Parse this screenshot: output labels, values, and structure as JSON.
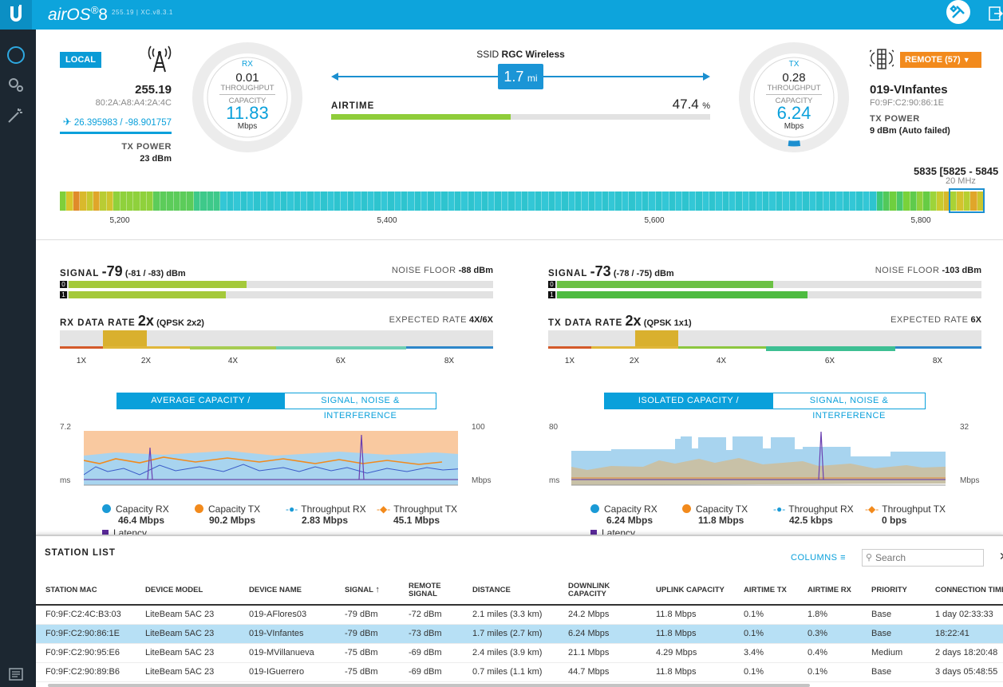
{
  "app": {
    "logo": "airOS",
    "version_num": "8",
    "subtitle": "255.19 | XC.v8.3.1"
  },
  "local": {
    "badge": "LOCAL",
    "ip": "255.19",
    "mac": "80:2A:A8:A4:2A:4C",
    "coords": "26.395983 / -98.901757",
    "tx_power_label": "TX POWER",
    "tx_power": "23 dBm"
  },
  "rx_gauge": {
    "label": "RX",
    "throughput": "0.01",
    "throughput_label": "THROUGHPUT",
    "capacity_label": "CAPACITY",
    "capacity": "11.83",
    "unit": "Mbps"
  },
  "tx_gauge": {
    "label": "TX",
    "throughput": "0.28",
    "throughput_label": "THROUGHPUT",
    "capacity_label": "CAPACITY",
    "capacity": "6.24",
    "unit": "Mbps",
    "level": 0.08
  },
  "link": {
    "ssid_label": "SSID",
    "ssid": "RGC Wireless",
    "distance": "1.7",
    "distance_unit": "mi",
    "airtime_label": "AIRTIME",
    "airtime": "47.4",
    "airtime_unit": "%",
    "airtime_fraction": 0.474
  },
  "remote": {
    "badge": "REMOTE (57)",
    "name": "019-VInfantes",
    "mac": "F0:9F:C2:90:86:1E",
    "tx_power_label": "TX POWER",
    "tx_power": "9 dBm (Auto failed)"
  },
  "spectrum": {
    "channel": "5835 [5825 - 5845",
    "width": "20 MHz",
    "ticks": [
      "5,200",
      "5,400",
      "5,600",
      "5,800"
    ]
  },
  "left": {
    "signal_label": "SIGNAL",
    "signal": "-79",
    "signal_detail": "(-81 / -83) dBm",
    "noise_label": "NOISE FLOOR",
    "noise": "-88 dBm",
    "chain0": "0",
    "chain1": "1",
    "chain0_level": 0.42,
    "chain1_level": 0.37,
    "rate_label": "RX DATA RATE",
    "rate": "2x",
    "rate_detail": "(QPSK 2x2)",
    "expected_label": "EXPECTED RATE",
    "expected": "4X/6X",
    "rate_ticks": [
      "1X",
      "2X",
      "4X",
      "6X",
      "8X"
    ],
    "tab1": "AVERAGE CAPACITY / THROUGHPUT",
    "tab2": "SIGNAL, NOISE & INTERFERENCE",
    "y_left_top": "7.2",
    "y_left_unit": "ms",
    "y_right_top": "100",
    "y_right_unit": "Mbps",
    "legend": [
      {
        "name": "Capacity RX",
        "value": "46.4 Mbps",
        "color": "#1a9ad6"
      },
      {
        "name": "Capacity TX",
        "value": "90.2 Mbps",
        "color": "#f28a1c"
      },
      {
        "name": "Throughput RX",
        "value": "2.83 Mbps",
        "color": "#1a9ad6"
      },
      {
        "name": "Throughput TX",
        "value": "45.1 Mbps",
        "color": "#f28a1c"
      }
    ],
    "latency_label": "Latency"
  },
  "right": {
    "signal_label": "SIGNAL",
    "signal": "-73",
    "signal_detail": "(-78 / -75) dBm",
    "noise_label": "NOISE FLOOR",
    "noise": "-103 dBm",
    "chain0": "0",
    "chain1": "1",
    "chain0_level": 0.51,
    "chain1_level": 0.59,
    "rate_label": "TX DATA RATE",
    "rate": "2x",
    "rate_detail": "(QPSK 1x1)",
    "expected_label": "EXPECTED RATE",
    "expected": "6X",
    "rate_ticks": [
      "1X",
      "2X",
      "4X",
      "6X",
      "8X"
    ],
    "tab1": "ISOLATED CAPACITY / THROUGHPUT",
    "tab2": "SIGNAL, NOISE & INTERFERENCE",
    "y_left_top": "80",
    "y_left_unit": "ms",
    "y_right_top": "32",
    "y_right_unit": "Mbps",
    "legend": [
      {
        "name": "Capacity RX",
        "value": "6.24 Mbps",
        "color": "#1a9ad6"
      },
      {
        "name": "Capacity TX",
        "value": "11.8 Mbps",
        "color": "#f28a1c"
      },
      {
        "name": "Throughput RX",
        "value": "42.5 kbps",
        "color": "#1a9ad6"
      },
      {
        "name": "Throughput TX",
        "value": "0 bps",
        "color": "#f28a1c"
      }
    ],
    "latency_label": "Latency"
  },
  "stations": {
    "title": "STATION LIST",
    "columns_label": "COLUMNS",
    "search_placeholder": "Search",
    "headers": [
      "STATION MAC",
      "DEVICE MODEL",
      "DEVICE NAME",
      "SIGNAL",
      "REMOTE SIGNAL",
      "DISTANCE",
      "DOWNLINK CAPACITY",
      "UPLINK CAPACITY",
      "AIRTIME TX",
      "AIRTIME RX",
      "PRIORITY",
      "CONNECTION TIME"
    ],
    "rows": [
      [
        "F0:9F:C2:4C:B3:03",
        "LiteBeam 5AC 23",
        "019-AFlores03",
        "-79 dBm",
        "-72 dBm",
        "2.1 miles (3.3 km)",
        "24.2 Mbps",
        "11.8 Mbps",
        "0.1%",
        "1.8%",
        "Base",
        "1 day 02:33:33"
      ],
      [
        "F0:9F:C2:90:86:1E",
        "LiteBeam 5AC 23",
        "019-VInfantes",
        "-79 dBm",
        "-73 dBm",
        "1.7 miles (2.7 km)",
        "6.24 Mbps",
        "11.8 Mbps",
        "0.1%",
        "0.3%",
        "Base",
        "18:22:41"
      ],
      [
        "F0:9F:C2:90:95:E6",
        "LiteBeam 5AC 23",
        "019-MVillanueva",
        "-75 dBm",
        "-69 dBm",
        "2.4 miles (3.9 km)",
        "21.1 Mbps",
        "4.29 Mbps",
        "3.4%",
        "0.4%",
        "Medium",
        "2 days 18:20:48"
      ],
      [
        "F0:9F:C2:90:89:B6",
        "LiteBeam 5AC 23",
        "019-IGuerrero",
        "-75 dBm",
        "-69 dBm",
        "0.7 miles (1.1 km)",
        "44.7 Mbps",
        "11.8 Mbps",
        "0.1%",
        "0.1%",
        "Base",
        "3 days 05:48:55"
      ]
    ]
  }
}
